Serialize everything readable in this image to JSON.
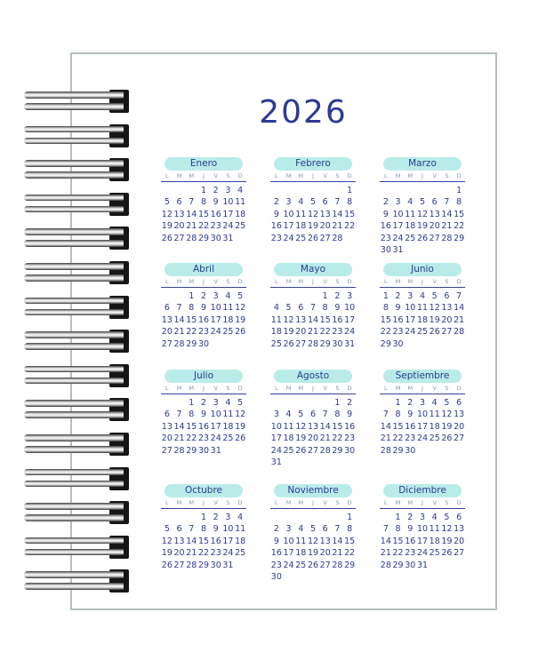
{
  "notebook": {
    "year_title": "2026",
    "weekday_headers": [
      "L",
      "M",
      "M",
      "J",
      "V",
      "S",
      "D"
    ],
    "months": [
      {
        "name": "Enero",
        "weeks": [
          [
            "",
            "",
            "",
            "1",
            "2",
            "3",
            "4"
          ],
          [
            "5",
            "6",
            "7",
            "8",
            "9",
            "10",
            "11"
          ],
          [
            "12",
            "13",
            "14",
            "15",
            "16",
            "17",
            "18"
          ],
          [
            "19",
            "20",
            "21",
            "22",
            "23",
            "24",
            "25"
          ],
          [
            "26",
            "27",
            "28",
            "29",
            "30",
            "31",
            ""
          ]
        ]
      },
      {
        "name": "Febrero",
        "weeks": [
          [
            "",
            "",
            "",
            "",
            "",
            "",
            "1"
          ],
          [
            "2",
            "3",
            "4",
            "5",
            "6",
            "7",
            "8"
          ],
          [
            "9",
            "10",
            "11",
            "12",
            "13",
            "14",
            "15"
          ],
          [
            "16",
            "17",
            "18",
            "19",
            "20",
            "21",
            "22"
          ],
          [
            "23",
            "24",
            "25",
            "26",
            "27",
            "28",
            ""
          ]
        ]
      },
      {
        "name": "Marzo",
        "weeks": [
          [
            "",
            "",
            "",
            "",
            "",
            "",
            "1"
          ],
          [
            "2",
            "3",
            "4",
            "5",
            "6",
            "7",
            "8"
          ],
          [
            "9",
            "10",
            "11",
            "12",
            "13",
            "14",
            "15"
          ],
          [
            "16",
            "17",
            "18",
            "19",
            "20",
            "21",
            "22"
          ],
          [
            "23",
            "24",
            "25",
            "26",
            "27",
            "28",
            "29"
          ],
          [
            "30",
            "31",
            "",
            "",
            "",
            "",
            ""
          ]
        ]
      },
      {
        "name": "Abril",
        "weeks": [
          [
            "",
            "",
            "1",
            "2",
            "3",
            "4",
            "5"
          ],
          [
            "6",
            "7",
            "8",
            "9",
            "10",
            "11",
            "12"
          ],
          [
            "13",
            "14",
            "15",
            "16",
            "17",
            "18",
            "19"
          ],
          [
            "20",
            "21",
            "22",
            "23",
            "24",
            "25",
            "26"
          ],
          [
            "27",
            "28",
            "29",
            "30",
            "",
            "",
            ""
          ]
        ]
      },
      {
        "name": "Mayo",
        "weeks": [
          [
            "",
            "",
            "",
            "",
            "1",
            "2",
            "3"
          ],
          [
            "4",
            "5",
            "6",
            "7",
            "8",
            "9",
            "10"
          ],
          [
            "11",
            "12",
            "13",
            "14",
            "15",
            "16",
            "17"
          ],
          [
            "18",
            "19",
            "20",
            "21",
            "22",
            "23",
            "24"
          ],
          [
            "25",
            "26",
            "27",
            "28",
            "29",
            "30",
            "31"
          ]
        ]
      },
      {
        "name": "Junio",
        "weeks": [
          [
            "1",
            "2",
            "3",
            "4",
            "5",
            "6",
            "7"
          ],
          [
            "8",
            "9",
            "10",
            "11",
            "12",
            "13",
            "14"
          ],
          [
            "15",
            "16",
            "17",
            "18",
            "19",
            "20",
            "21"
          ],
          [
            "22",
            "23",
            "24",
            "25",
            "26",
            "27",
            "28"
          ],
          [
            "29",
            "30",
            "",
            "",
            "",
            "",
            ""
          ]
        ]
      },
      {
        "name": "Julio",
        "weeks": [
          [
            "",
            "",
            "1",
            "2",
            "3",
            "4",
            "5"
          ],
          [
            "6",
            "7",
            "8",
            "9",
            "10",
            "11",
            "12"
          ],
          [
            "13",
            "14",
            "15",
            "16",
            "17",
            "18",
            "19"
          ],
          [
            "20",
            "21",
            "22",
            "23",
            "24",
            "25",
            "26"
          ],
          [
            "27",
            "28",
            "29",
            "30",
            "31",
            "",
            ""
          ]
        ]
      },
      {
        "name": "Agosto",
        "weeks": [
          [
            "",
            "",
            "",
            "",
            "",
            "1",
            "2"
          ],
          [
            "3",
            "4",
            "5",
            "6",
            "7",
            "8",
            "9"
          ],
          [
            "10",
            "11",
            "12",
            "13",
            "14",
            "15",
            "16"
          ],
          [
            "17",
            "18",
            "19",
            "20",
            "21",
            "22",
            "23"
          ],
          [
            "24",
            "25",
            "26",
            "27",
            "28",
            "29",
            "30"
          ],
          [
            "31",
            "",
            "",
            "",
            "",
            "",
            ""
          ]
        ]
      },
      {
        "name": "Septiembre",
        "weeks": [
          [
            "",
            "1",
            "2",
            "3",
            "4",
            "5",
            "6"
          ],
          [
            "7",
            "8",
            "9",
            "10",
            "11",
            "12",
            "13"
          ],
          [
            "14",
            "15",
            "16",
            "17",
            "18",
            "19",
            "20"
          ],
          [
            "21",
            "22",
            "23",
            "24",
            "25",
            "26",
            "27"
          ],
          [
            "28",
            "29",
            "30",
            "",
            "",
            "",
            ""
          ]
        ]
      },
      {
        "name": "Octubre",
        "weeks": [
          [
            "",
            "",
            "",
            "1",
            "2",
            "3",
            "4"
          ],
          [
            "5",
            "6",
            "7",
            "8",
            "9",
            "10",
            "11"
          ],
          [
            "12",
            "13",
            "14",
            "15",
            "16",
            "17",
            "18"
          ],
          [
            "19",
            "20",
            "21",
            "22",
            "23",
            "24",
            "25"
          ],
          [
            "26",
            "27",
            "28",
            "29",
            "30",
            "31",
            ""
          ]
        ]
      },
      {
        "name": "Noviembre",
        "weeks": [
          [
            "",
            "",
            "",
            "",
            "",
            "",
            "1"
          ],
          [
            "2",
            "3",
            "4",
            "5",
            "6",
            "7",
            "8"
          ],
          [
            "9",
            "10",
            "11",
            "12",
            "13",
            "14",
            "15"
          ],
          [
            "16",
            "17",
            "18",
            "19",
            "20",
            "21",
            "22"
          ],
          [
            "23",
            "24",
            "25",
            "26",
            "27",
            "28",
            "29"
          ],
          [
            "30",
            "",
            "",
            "",
            "",
            "",
            ""
          ]
        ]
      },
      {
        "name": "Diciembre",
        "weeks": [
          [
            "",
            "1",
            "2",
            "3",
            "4",
            "5",
            "6"
          ],
          [
            "7",
            "8",
            "9",
            "10",
            "11",
            "12",
            "13"
          ],
          [
            "14",
            "15",
            "16",
            "17",
            "18",
            "19",
            "20"
          ],
          [
            "21",
            "22",
            "23",
            "24",
            "25",
            "26",
            "27"
          ],
          [
            "28",
            "29",
            "30",
            "31",
            "",
            "",
            ""
          ]
        ]
      }
    ]
  },
  "binding": {
    "coil_count": 15,
    "coil_top_start": 103,
    "coil_spacing": 38.6
  },
  "layout": {
    "month_row_tops": [
      177,
      296,
      416,
      545
    ]
  },
  "colors": {
    "ink_blue": "#2b3a93",
    "month_header_bg": "#b9ece9",
    "weekday_gray": "#8296ac",
    "page_border": "#b3c1ba",
    "coil_hole_black": "#161616"
  }
}
